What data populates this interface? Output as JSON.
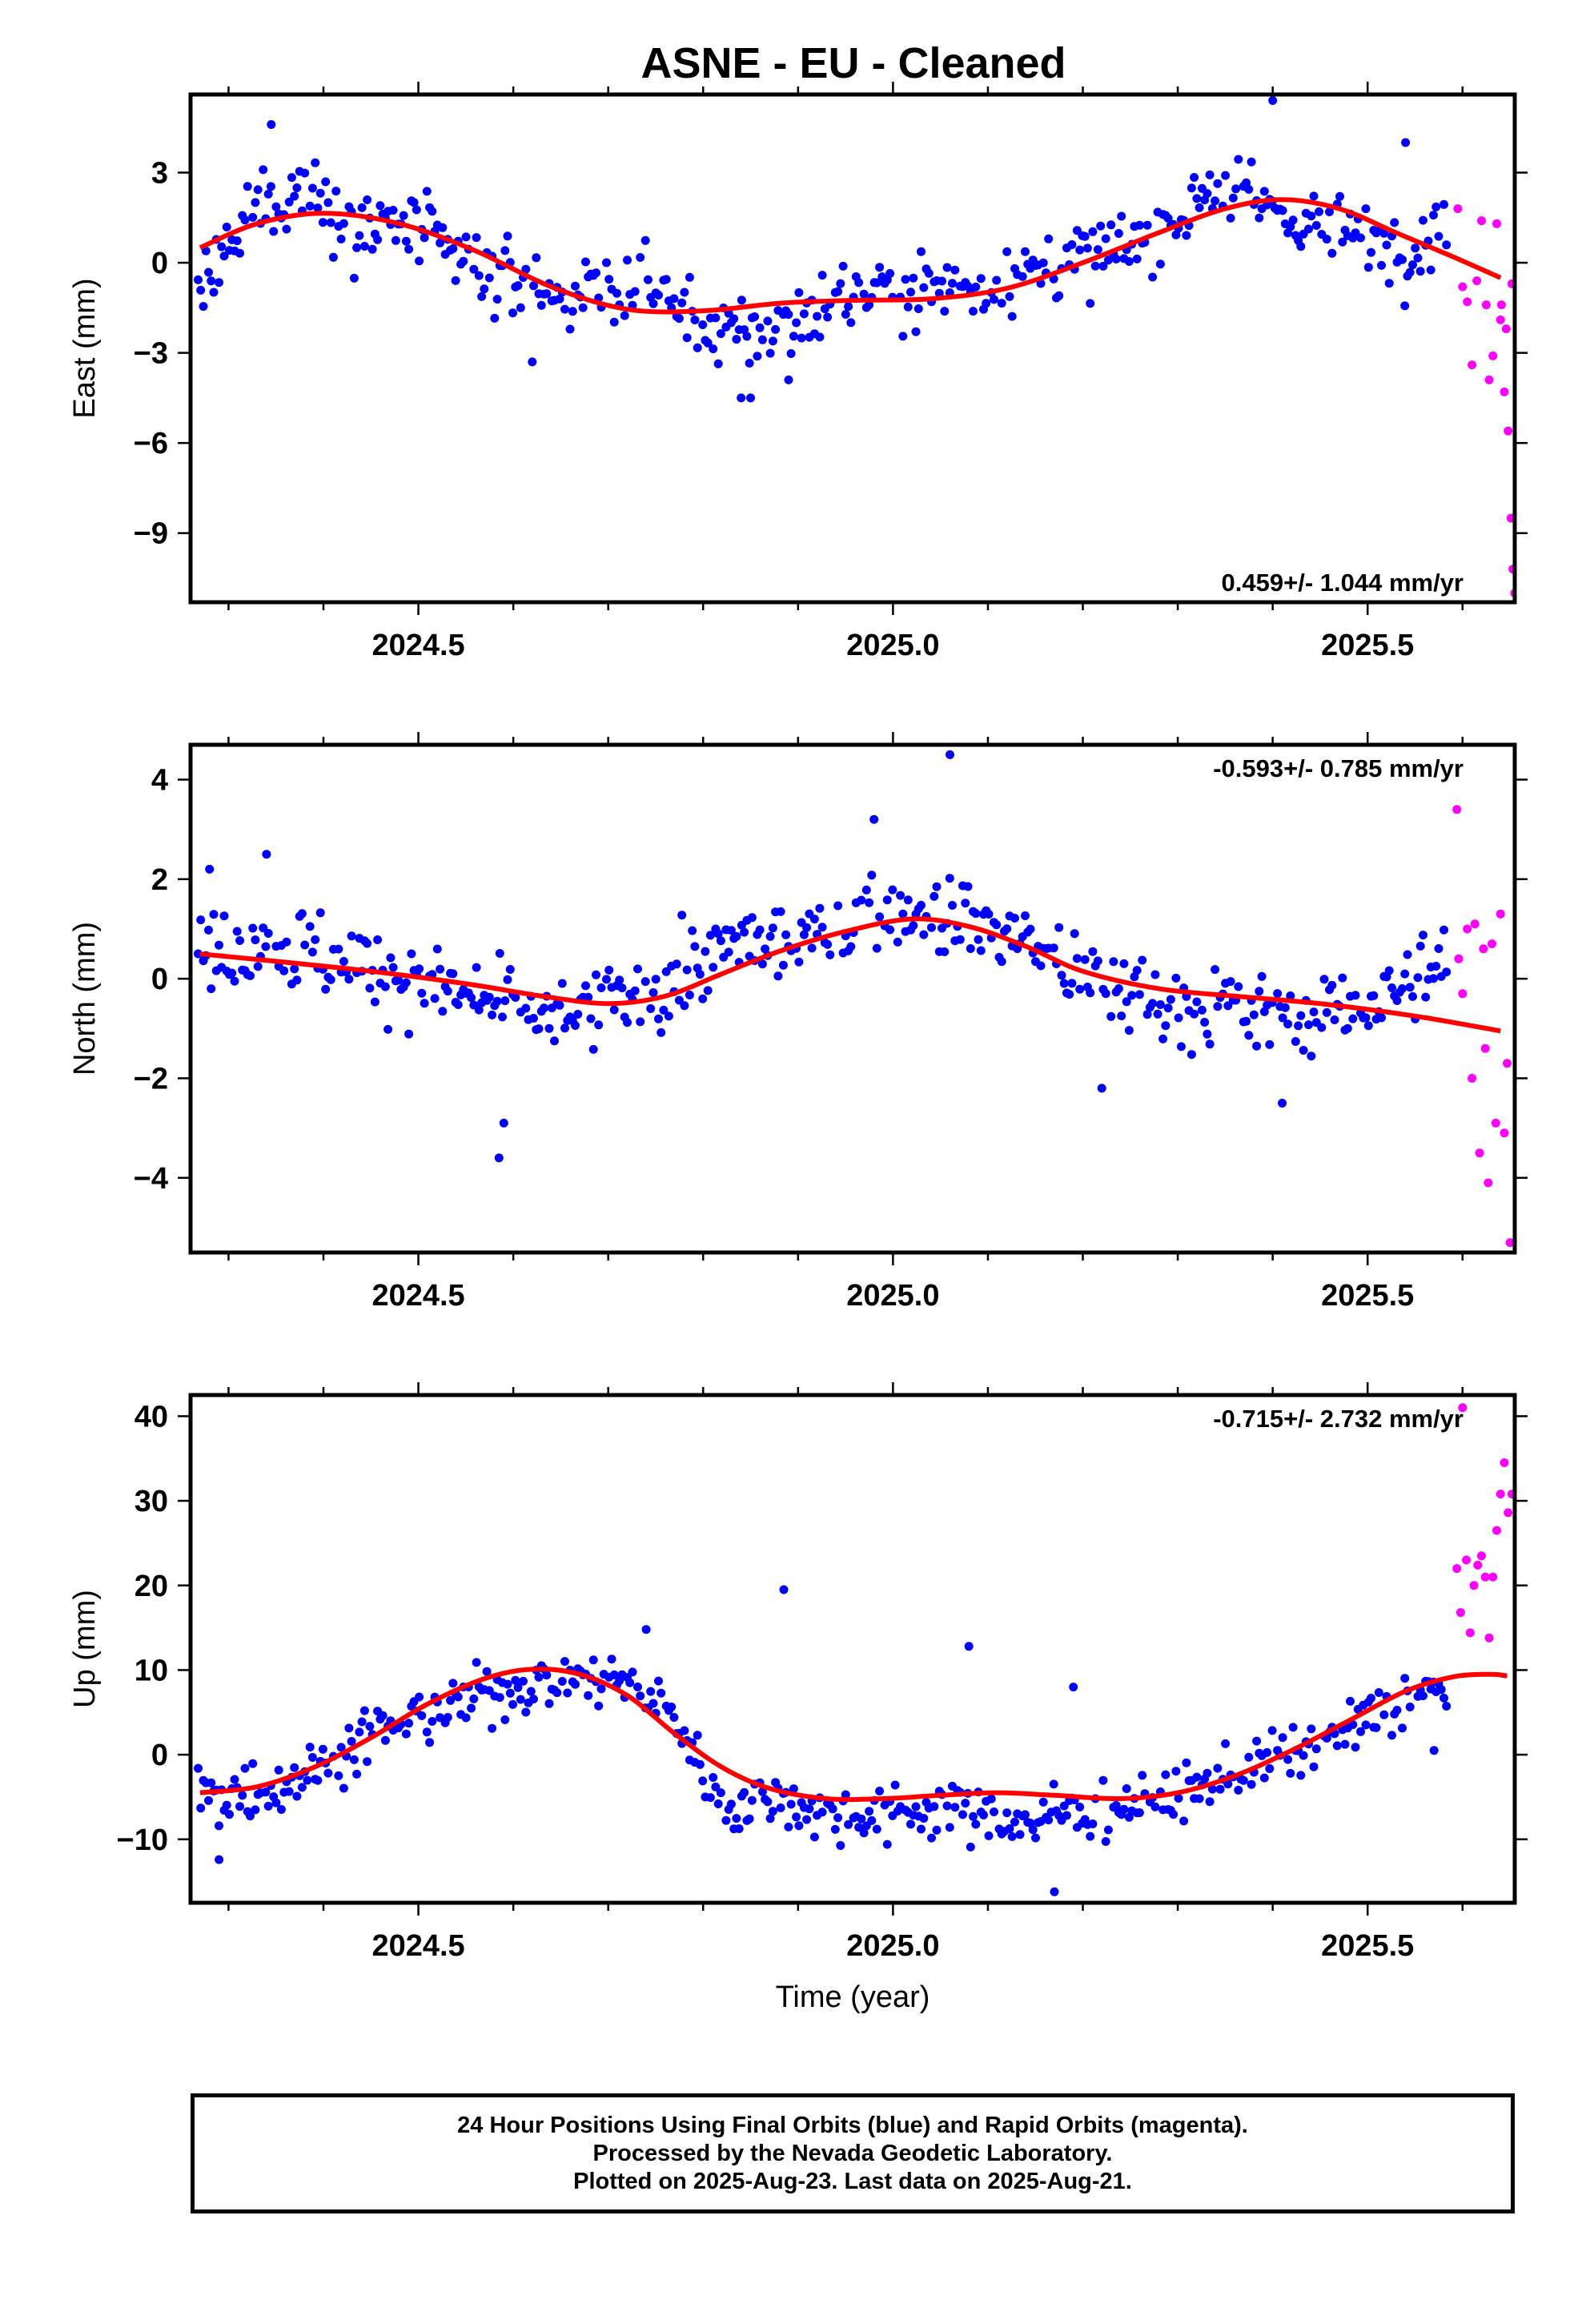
{
  "title": "ASNE  - EU - Cleaned",
  "footer": {
    "line1": "24 Hour Positions Using Final Orbits (blue) and Rapid Orbits (magenta).",
    "line2": "Processed by the Nevada Geodetic Laboratory.",
    "line3": "Plotted on 2025-Aug-23. Last data on 2025-Aug-21."
  },
  "colors": {
    "final": "#0000ff",
    "rapid": "#ff00ff",
    "model": "#ff0000",
    "frame": "#000000"
  },
  "chart_data": [
    {
      "type": "scatter",
      "ylabel": "East (mm)",
      "xlabel": "",
      "xlim": [
        2024.26,
        2025.655
      ],
      "ylim": [
        -11.3,
        5.6
      ],
      "yticks": [
        3,
        0,
        -3,
        -6,
        -9
      ],
      "ytick_labels": [
        "3",
        "0",
        "−3",
        "−6",
        "−9"
      ],
      "xticks": [
        2024.5,
        2025.0,
        2025.5
      ],
      "xtick_labels": [
        "2024.5",
        "2025.0",
        "2025.5"
      ],
      "rate_label": "0.459+/- 1.044 mm/yr",
      "rate_position": "bottom-right",
      "grid": false,
      "final_anchors": [
        [
          2024.28,
          -0.5
        ],
        [
          2024.33,
          1.8
        ],
        [
          2024.38,
          2.5
        ],
        [
          2024.42,
          1.5
        ],
        [
          2024.5,
          1.0
        ],
        [
          2024.58,
          -0.5
        ],
        [
          2024.66,
          -1.0
        ],
        [
          2024.74,
          -0.8
        ],
        [
          2024.82,
          -2.5
        ],
        [
          2024.88,
          -2.2
        ],
        [
          2024.95,
          -1.0
        ],
        [
          2025.02,
          -0.9
        ],
        [
          2025.1,
          -0.7
        ],
        [
          2025.18,
          0.0
        ],
        [
          2025.26,
          0.5
        ],
        [
          2025.33,
          2.5
        ],
        [
          2025.4,
          1.8
        ],
        [
          2025.47,
          1.0
        ],
        [
          2025.55,
          0.5
        ],
        [
          2025.58,
          1.5
        ]
      ],
      "final_scatter": 1.3,
      "final_outliers": [
        [
          2024.345,
          4.6
        ],
        [
          2024.84,
          -4.5
        ],
        [
          2024.85,
          -4.5
        ],
        [
          2025.4,
          5.4
        ],
        [
          2025.54,
          4.0
        ],
        [
          2024.89,
          -3.9
        ],
        [
          2024.62,
          -3.3
        ]
      ],
      "rapid_points": [
        [
          2025.595,
          1.8
        ],
        [
          2025.6,
          -0.8
        ],
        [
          2025.605,
          -1.3
        ],
        [
          2025.61,
          -3.4
        ],
        [
          2025.615,
          -0.6
        ],
        [
          2025.62,
          1.4
        ],
        [
          2025.625,
          -1.4
        ],
        [
          2025.628,
          -3.9
        ],
        [
          2025.632,
          -3.1
        ],
        [
          2025.636,
          1.3
        ],
        [
          2025.64,
          -1.9
        ],
        [
          2025.644,
          -4.3
        ],
        [
          2025.646,
          -2.2
        ],
        [
          2025.648,
          -5.6
        ],
        [
          2025.651,
          -8.5
        ],
        [
          2025.653,
          -10.2
        ],
        [
          2025.655,
          -11.0
        ],
        [
          2025.652,
          -0.7
        ],
        [
          2025.641,
          -1.4
        ]
      ],
      "model_curve": [
        [
          2024.27,
          0.5
        ],
        [
          2024.33,
          1.3
        ],
        [
          2024.4,
          1.65
        ],
        [
          2024.48,
          1.3
        ],
        [
          2024.56,
          0.4
        ],
        [
          2024.64,
          -0.8
        ],
        [
          2024.72,
          -1.55
        ],
        [
          2024.8,
          -1.6
        ],
        [
          2024.88,
          -1.35
        ],
        [
          2024.96,
          -1.25
        ],
        [
          2025.04,
          -1.2
        ],
        [
          2025.12,
          -0.85
        ],
        [
          2025.2,
          0.0
        ],
        [
          2025.28,
          1.0
        ],
        [
          2025.35,
          1.8
        ],
        [
          2025.41,
          2.1
        ],
        [
          2025.47,
          1.8
        ],
        [
          2025.53,
          1.0
        ],
        [
          2025.59,
          0.2
        ],
        [
          2025.64,
          -0.5
        ]
      ]
    },
    {
      "type": "scatter",
      "ylabel": "North (mm)",
      "xlabel": "",
      "xlim": [
        2024.26,
        2025.655
      ],
      "ylim": [
        -5.5,
        4.7
      ],
      "yticks": [
        4,
        2,
        0,
        -2,
        -4
      ],
      "ytick_labels": [
        "4",
        "2",
        "0",
        "−2",
        "−4"
      ],
      "xticks": [
        2024.5,
        2025.0,
        2025.5
      ],
      "xtick_labels": [
        "2024.5",
        "2025.0",
        "2025.5"
      ],
      "rate_label": "-0.593+/- 0.785 mm/yr",
      "rate_position": "top-right",
      "grid": false,
      "final_anchors": [
        [
          2024.28,
          0.5
        ],
        [
          2024.33,
          0.8
        ],
        [
          2024.38,
          0.5
        ],
        [
          2024.45,
          0.2
        ],
        [
          2024.52,
          -0.2
        ],
        [
          2024.58,
          -0.5
        ],
        [
          2024.64,
          -0.8
        ],
        [
          2024.7,
          -0.5
        ],
        [
          2024.78,
          0.0
        ],
        [
          2024.84,
          0.8
        ],
        [
          2024.9,
          0.7
        ],
        [
          2024.96,
          1.2
        ],
        [
          2025.02,
          1.4
        ],
        [
          2025.08,
          1.2
        ],
        [
          2025.14,
          0.8
        ],
        [
          2025.2,
          0.0
        ],
        [
          2025.28,
          -0.5
        ],
        [
          2025.36,
          -0.6
        ],
        [
          2025.44,
          -0.7
        ],
        [
          2025.52,
          -0.4
        ],
        [
          2025.58,
          0.3
        ]
      ],
      "final_scatter": 0.85,
      "final_outliers": [
        [
          2024.28,
          2.2
        ],
        [
          2024.34,
          2.5
        ],
        [
          2024.585,
          -3.6
        ],
        [
          2024.59,
          -2.9
        ],
        [
          2025.06,
          4.5
        ],
        [
          2024.98,
          3.2
        ],
        [
          2025.22,
          -2.2
        ],
        [
          2025.41,
          -2.5
        ]
      ],
      "rapid_points": [
        [
          2025.594,
          3.4
        ],
        [
          2025.596,
          0.4
        ],
        [
          2025.6,
          -0.3
        ],
        [
          2025.605,
          1.0
        ],
        [
          2025.61,
          -2.0
        ],
        [
          2025.613,
          1.1
        ],
        [
          2025.618,
          -3.5
        ],
        [
          2025.622,
          0.6
        ],
        [
          2025.627,
          -4.1
        ],
        [
          2025.631,
          0.7
        ],
        [
          2025.635,
          -2.9
        ],
        [
          2025.64,
          1.3
        ],
        [
          2025.644,
          -3.1
        ],
        [
          2025.647,
          -1.7
        ],
        [
          2025.65,
          -5.3
        ],
        [
          2025.624,
          -1.4
        ]
      ],
      "model_curve": [
        [
          2024.27,
          0.5
        ],
        [
          2024.35,
          0.35
        ],
        [
          2024.45,
          0.15
        ],
        [
          2024.55,
          -0.1
        ],
        [
          2024.63,
          -0.35
        ],
        [
          2024.7,
          -0.5
        ],
        [
          2024.76,
          -0.35
        ],
        [
          2024.82,
          0.1
        ],
        [
          2024.88,
          0.55
        ],
        [
          2024.95,
          0.95
        ],
        [
          2025.02,
          1.2
        ],
        [
          2025.08,
          1.05
        ],
        [
          2025.14,
          0.65
        ],
        [
          2025.2,
          0.15
        ],
        [
          2025.28,
          -0.2
        ],
        [
          2025.36,
          -0.35
        ],
        [
          2025.45,
          -0.5
        ],
        [
          2025.55,
          -0.75
        ],
        [
          2025.64,
          -1.05
        ]
      ]
    },
    {
      "type": "scatter",
      "ylabel": "Up (mm)",
      "xlabel": "Time (year)",
      "xlim": [
        2024.26,
        2025.655
      ],
      "ylim": [
        -17.5,
        42.5
      ],
      "yticks": [
        40,
        30,
        20,
        10,
        0,
        -10
      ],
      "ytick_labels": [
        "40",
        "30",
        "20",
        "10",
        "0",
        "−10"
      ],
      "xticks": [
        2024.5,
        2025.0,
        2025.5
      ],
      "xtick_labels": [
        "2024.5",
        "2025.0",
        "2025.5"
      ],
      "rate_label": "-0.715+/- 2.732 mm/yr",
      "rate_position": "top-right",
      "grid": false,
      "final_anchors": [
        [
          2024.28,
          -5.0
        ],
        [
          2024.34,
          -4.0
        ],
        [
          2024.4,
          -1.0
        ],
        [
          2024.46,
          3.0
        ],
        [
          2024.52,
          5.0
        ],
        [
          2024.58,
          7.5
        ],
        [
          2024.64,
          9.0
        ],
        [
          2024.7,
          9.0
        ],
        [
          2024.76,
          6.0
        ],
        [
          2024.82,
          -6.0
        ],
        [
          2024.88,
          -5.0
        ],
        [
          2024.94,
          -7.0
        ],
        [
          2025.0,
          -7.0
        ],
        [
          2025.06,
          -6.0
        ],
        [
          2025.12,
          -8.0
        ],
        [
          2025.18,
          -7.0
        ],
        [
          2025.24,
          -6.0
        ],
        [
          2025.3,
          -5.0
        ],
        [
          2025.36,
          -2.0
        ],
        [
          2025.42,
          0.0
        ],
        [
          2025.48,
          3.0
        ],
        [
          2025.54,
          6.0
        ],
        [
          2025.58,
          8.0
        ]
      ],
      "final_scatter": 3.4,
      "final_outliers": [
        [
          2024.885,
          19.5
        ],
        [
          2025.08,
          12.8
        ],
        [
          2025.19,
          8.0
        ],
        [
          2025.17,
          -16.2
        ],
        [
          2024.74,
          14.8
        ],
        [
          2025.57,
          0.5
        ],
        [
          2024.29,
          -12.4
        ]
      ],
      "rapid_points": [
        [
          2025.594,
          22.0
        ],
        [
          2025.598,
          16.8
        ],
        [
          2025.6,
          41.0
        ],
        [
          2025.604,
          23.0
        ],
        [
          2025.608,
          14.4
        ],
        [
          2025.612,
          20.0
        ],
        [
          2025.616,
          22.4
        ],
        [
          2025.62,
          23.5
        ],
        [
          2025.624,
          21.0
        ],
        [
          2025.628,
          13.8
        ],
        [
          2025.632,
          21.0
        ],
        [
          2025.636,
          26.5
        ],
        [
          2025.64,
          30.8
        ],
        [
          2025.644,
          34.5
        ],
        [
          2025.648,
          28.6
        ],
        [
          2025.652,
          30.8
        ]
      ],
      "model_curve": [
        [
          2024.27,
          -4.5
        ],
        [
          2024.33,
          -3.8
        ],
        [
          2024.39,
          -1.5
        ],
        [
          2024.45,
          2.0
        ],
        [
          2024.51,
          6.0
        ],
        [
          2024.57,
          9.0
        ],
        [
          2024.62,
          10.1
        ],
        [
          2024.67,
          9.5
        ],
        [
          2024.72,
          7.0
        ],
        [
          2024.77,
          2.5
        ],
        [
          2024.82,
          -1.5
        ],
        [
          2024.87,
          -4.0
        ],
        [
          2024.93,
          -5.2
        ],
        [
          2024.99,
          -5.2
        ],
        [
          2025.05,
          -4.8
        ],
        [
          2025.11,
          -4.5
        ],
        [
          2025.17,
          -4.8
        ],
        [
          2025.24,
          -5.2
        ],
        [
          2025.3,
          -4.5
        ],
        [
          2025.36,
          -2.5
        ],
        [
          2025.42,
          0.5
        ],
        [
          2025.48,
          4.0
        ],
        [
          2025.54,
          7.5
        ],
        [
          2025.59,
          9.2
        ],
        [
          2025.63,
          9.5
        ],
        [
          2025.647,
          9.3
        ]
      ]
    }
  ]
}
